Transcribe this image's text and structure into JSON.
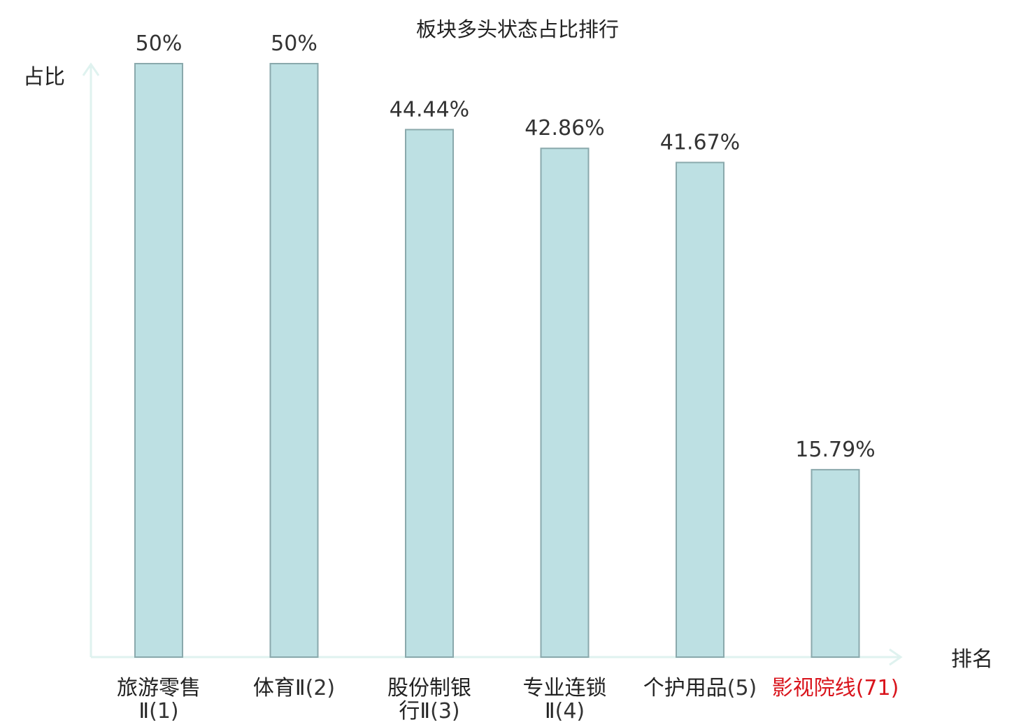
{
  "chart_data": {
    "type": "bar",
    "title": "板块多头状态占比排行",
    "ylabel": "占比",
    "xlabel": "排名",
    "ylim": [
      0,
      50
    ],
    "grid": false,
    "categories": [
      {
        "name_lines": [
          "旅游零售",
          "Ⅱ"
        ],
        "rank": "(1)",
        "highlight": false
      },
      {
        "name_lines": [
          "体育Ⅱ"
        ],
        "rank": "(2)",
        "highlight": false
      },
      {
        "name_lines": [
          "股份制银",
          "行Ⅱ"
        ],
        "rank": "(3)",
        "highlight": false
      },
      {
        "name_lines": [
          "专业连锁",
          "Ⅱ"
        ],
        "rank": "(4)",
        "highlight": false
      },
      {
        "name_lines": [
          "个护用品"
        ],
        "rank": "(5)",
        "highlight": false
      },
      {
        "name_lines": [
          "影视院线"
        ],
        "rank": "(71)",
        "highlight": true
      }
    ],
    "values": [
      50,
      50,
      44.44,
      42.86,
      41.67,
      15.79
    ],
    "value_labels": [
      "50%",
      "50%",
      "44.44%",
      "42.86%",
      "41.67%",
      "15.79%"
    ],
    "colors": {
      "bar_fill": "#bde0e3",
      "bar_stroke": "#8aa9ac",
      "axis": "#dff2ef",
      "highlight": "#d9141c"
    }
  }
}
